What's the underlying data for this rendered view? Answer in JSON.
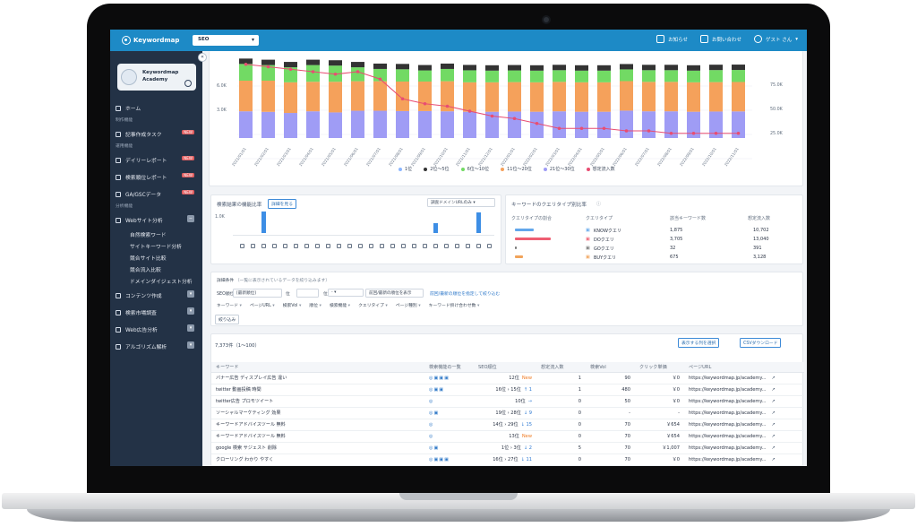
{
  "app": {
    "logo_text": "Keywordmap",
    "product_select": "SEO",
    "notifications_label": "お知らせ",
    "contact_label": "お問い合わせ",
    "user_label": "ゲスト さん"
  },
  "sidebar": {
    "academy_title_1": "Keywordmap",
    "academy_title_2": "Academy",
    "items": [
      {
        "type": "main",
        "label": "ホーム",
        "icon": "home-icon"
      },
      {
        "type": "section",
        "label": "制作機能"
      },
      {
        "type": "main",
        "label": "記事作成タスク",
        "icon": "edit-icon",
        "badge": "NEW"
      },
      {
        "type": "section",
        "label": "運用機能"
      },
      {
        "type": "main",
        "label": "デイリーレポート",
        "icon": "clock-icon",
        "badge": "NEW"
      },
      {
        "type": "main",
        "label": "検索順位レポート",
        "icon": "calendar-icon",
        "badge": "NEW"
      },
      {
        "type": "main",
        "label": "GA/GSCデータ",
        "icon": "chart-icon",
        "badge": "NEW"
      },
      {
        "type": "section",
        "label": "分析機能"
      },
      {
        "type": "main",
        "label": "Webサイト分析",
        "icon": "website-icon",
        "toggle": "−"
      },
      {
        "type": "sub",
        "label": "自然検索ワード"
      },
      {
        "type": "sub",
        "label": "サイトキーワード分析"
      },
      {
        "type": "sub",
        "label": "競合サイト比較"
      },
      {
        "type": "sub",
        "label": "競合流入比較"
      },
      {
        "type": "sub",
        "label": "ドメインダイジェスト分析"
      },
      {
        "type": "main",
        "label": "コンテンツ作成",
        "icon": "pen-icon",
        "toggle": "▾"
      },
      {
        "type": "main",
        "label": "検索市場調査",
        "icon": "search-icon",
        "toggle": "▾"
      },
      {
        "type": "main",
        "label": "Web広告分析",
        "icon": "ad-icon",
        "toggle": "▾"
      },
      {
        "type": "main",
        "label": "アルゴリズム解析",
        "icon": "algorithm-icon",
        "toggle": "▾"
      }
    ]
  },
  "chart_data": {
    "type": "bar",
    "categories": [
      "2021/01/01",
      "2021/02/01",
      "2021/03/01",
      "2021/04/01",
      "2021/05/01",
      "2021/06/01",
      "2021/07/01",
      "2021/08/01",
      "2021/09/01",
      "2021/10/01",
      "2021/11/01",
      "2021/12/01",
      "2022/01/01",
      "2022/02/01",
      "2022/03/01",
      "2022/04/01",
      "2022/05/01",
      "2022/06/01",
      "2022/07/01",
      "2022/08/01",
      "2022/09/01",
      "2022/10/01",
      "2022/11/01"
    ],
    "ylim": [
      0,
      7000
    ],
    "y_ticks": [
      "3.0K",
      "6.0K"
    ],
    "y2_ticks": [
      "25.0K",
      "50.0K",
      "75.0K"
    ],
    "series": [
      {
        "name": "1位",
        "color": "#9f9cf5",
        "values": [
          2400,
          2350,
          2250,
          2400,
          2300,
          2450,
          2450,
          2420,
          2420,
          2400,
          2360,
          2360,
          2380,
          2360,
          2400,
          2360,
          2360,
          2460,
          2400,
          2400,
          2360,
          2380,
          2390
        ]
      },
      {
        "name": "2位〜5位",
        "color": "#f5a15b",
        "values": [
          2750,
          2800,
          2750,
          2650,
          2750,
          2650,
          2650,
          2650,
          2650,
          2700,
          2640,
          2640,
          2640,
          2640,
          2640,
          2640,
          2640,
          2650,
          2640,
          2640,
          2640,
          2640,
          2640
        ]
      },
      {
        "name": "6位〜10位",
        "color": "#72da64",
        "values": [
          1500,
          1400,
          1350,
          1500,
          1450,
          1250,
          1100,
          1100,
          1000,
          1100,
          1080,
          1050,
          1050,
          1050,
          1050,
          1050,
          1050,
          1050,
          1050,
          1050,
          1050,
          1080,
          1080
        ]
      },
      {
        "name": "11位〜20位",
        "color": "#f2994a",
        "values": [
          0,
          0,
          0,
          0,
          0,
          0,
          0,
          0,
          0,
          0,
          0,
          0,
          0,
          0,
          0,
          0,
          0,
          0,
          0,
          0,
          0,
          0,
          0
        ]
      },
      {
        "name": "21位〜30位",
        "color": "#5c6de3",
        "values": [
          0,
          0,
          0,
          0,
          0,
          0,
          0,
          0,
          0,
          0,
          0,
          0,
          0,
          0,
          0,
          0,
          0,
          0,
          0,
          0,
          0,
          0,
          0
        ]
      },
      {
        "name": "想定流入数",
        "color": "#e84d72",
        "values": [
          76000,
          75000,
          74000,
          73000,
          72000,
          73000,
          70000,
          62000,
          60000,
          59000,
          57000,
          55000,
          54000,
          52000,
          50000,
          50000,
          50000,
          49000,
          49000,
          48000,
          48000,
          48000,
          48000
        ]
      }
    ],
    "legend": [
      "1位",
      "2位〜5位",
      "6位〜10位",
      "11位〜20位",
      "21位〜30位",
      "想定流入数"
    ],
    "legend_colors": [
      "#8bb6ff",
      "#333333",
      "#72da64",
      "#f5a15b",
      "#9f9cf5",
      "#e84d72"
    ]
  },
  "serp": {
    "title": "検索結果の機能比率",
    "detail_button": "詳細を見る",
    "filter": "調査ドメインURLのみ",
    "y_tick": "1.0K",
    "values": [
      0,
      0,
      900,
      0,
      0,
      0,
      0,
      0,
      0,
      0,
      0,
      0,
      0,
      0,
      0,
      0,
      0,
      0,
      420,
      0,
      0,
      0,
      850,
      0
    ]
  },
  "query": {
    "title": "キーワードのクエリタイプ別比率",
    "headers": [
      "クエリタイプの割合",
      "クエリタイプ",
      "該当キーワード数",
      "想定流入数"
    ],
    "rows": [
      {
        "type": "KNOWクエリ",
        "count": "1,875",
        "inflow": "10,702",
        "color": "#62a7eb",
        "ratio": 0.38
      },
      {
        "type": "DOクエリ",
        "count": "3,705",
        "inflow": "13,040",
        "color": "#ee5e72",
        "ratio": 0.72
      },
      {
        "type": "GOクエリ",
        "count": "32",
        "inflow": "391",
        "color": "#777777",
        "ratio": 0.02
      },
      {
        "type": "BUYクエリ",
        "count": "675",
        "inflow": "3,128",
        "color": "#f1a35a",
        "ratio": 0.16
      }
    ]
  },
  "filters": {
    "title": "詳細条件",
    "subtitle": "（一覧に表示されているデータを絞り込みます）",
    "rank_label": "SEO順位",
    "rank_mode": "[最新順位]",
    "from_unit": "位",
    "to_unit": "位",
    "compare_select": "前回/最新の順位を表示",
    "compare_link": "前回/最新の順位を指定して絞り込む",
    "chips": [
      "キーワード",
      "ページURL",
      "検索Vol",
      "順位",
      "検索機能",
      "クエリタイプ",
      "ページ種別",
      "キーワード掛け合わせ数"
    ],
    "apply": "絞り込み"
  },
  "table": {
    "count": "7,373件（1〜100）",
    "column_button": "表示する列を選択",
    "csv_button": "CSVダウンロード",
    "headers": [
      "キーワード",
      "検索機能の一覧",
      "SEO順位",
      "想定流入数",
      "検索Vol",
      "クリック単価",
      "ページURL"
    ],
    "rows": [
      {
        "keyword": "バナー広告 ディスプレイ広告 違い",
        "features": "◎▣▣▣",
        "rank_prev": "",
        "rank": "12位",
        "change": "New",
        "inflow": "1",
        "volume": "90",
        "cpc": "￥0",
        "url": "https://keywordmap.jp/academy..."
      },
      {
        "keyword": "twitter 動画投稿 時間",
        "features": "◎▣▣",
        "rank_prev": "16位",
        "rank": "15位",
        "change": "↑ 1",
        "inflow": "1",
        "volume": "480",
        "cpc": "￥0",
        "url": "https://keywordmap.jp/academy..."
      },
      {
        "keyword": "twitter広告 プロモツイート",
        "features": "◎",
        "rank_prev": "",
        "rank": "10位",
        "change": "→",
        "inflow": "0",
        "volume": "50",
        "cpc": "￥0",
        "url": "https://keywordmap.jp/academy..."
      },
      {
        "keyword": "ソーシャルマーケティング 効果",
        "features": "◎▣",
        "rank_prev": "19位",
        "rank": "28位",
        "change": "↓ 9",
        "inflow": "0",
        "volume": "-",
        "cpc": "-",
        "url": "https://keywordmap.jp/academy..."
      },
      {
        "keyword": "キーワードアドバイスツール 無料",
        "features": "◎",
        "rank_prev": "14位",
        "rank": "29位",
        "change": "↓ 15",
        "inflow": "0",
        "volume": "70",
        "cpc": "￥654",
        "url": "https://keywordmap.jp/academy..."
      },
      {
        "keyword": "キーワードアドバイスツール 無料",
        "features": "◎",
        "rank_prev": "",
        "rank": "13位",
        "change": "New",
        "inflow": "0",
        "volume": "70",
        "cpc": "￥654",
        "url": "https://keywordmap.jp/academy..."
      },
      {
        "keyword": "google 検索 サジェスト 削除",
        "features": "◎▣",
        "rank_prev": "1位",
        "rank": "3位",
        "change": "↓ 2",
        "inflow": "5",
        "volume": "70",
        "cpc": "￥1,007",
        "url": "https://keywordmap.jp/academy..."
      },
      {
        "keyword": "クローリング わかり やすく",
        "features": "◎▣▣▣",
        "rank_prev": "16位",
        "rank": "27位",
        "change": "↓ 11",
        "inflow": "0",
        "volume": "70",
        "cpc": "￥0",
        "url": "https://keywordmap.jp/academy..."
      }
    ]
  }
}
